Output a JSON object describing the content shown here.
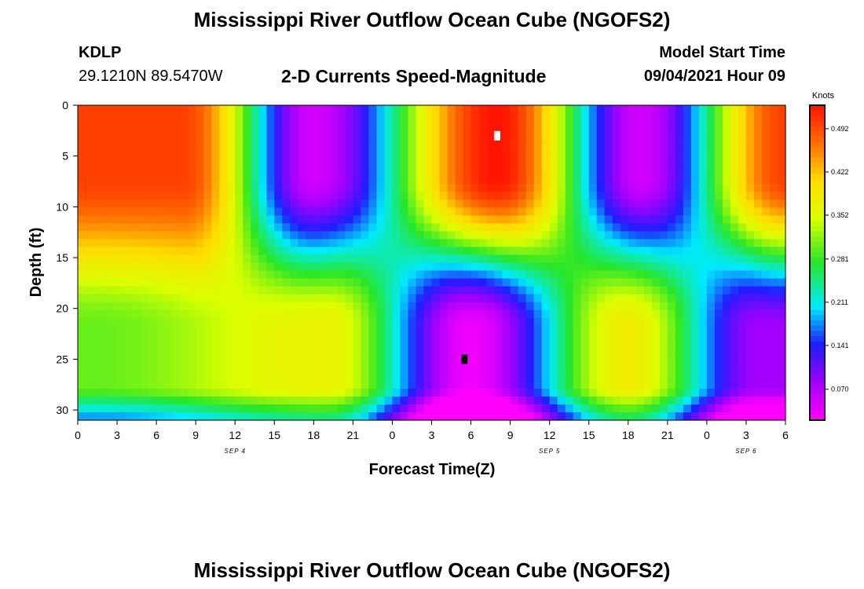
{
  "page": {
    "title_top": "Mississippi River Outflow Ocean Cube (NGOFS2)",
    "title_bottom": "Mississippi River Outflow Ocean Cube (NGOFS2)",
    "station_id": "KDLP",
    "station_coords": "29.1210N  89.5470W",
    "subtitle": "2-D Currents Speed-Magnitude",
    "model_start_label": "Model Start Time",
    "model_start_value": "09/04/2021 Hour 09"
  },
  "chart_data": {
    "type": "heatmap",
    "title": "2-D Currents Speed-Magnitude",
    "xlabel": "Forecast Time(Z)",
    "ylabel": "Depth (ft)",
    "x_range_hours": [
      0,
      54
    ],
    "x_tick_labels": [
      "0",
      "3",
      "6",
      "9",
      "12",
      "15",
      "18",
      "21",
      "0",
      "3",
      "6",
      "9",
      "12",
      "15",
      "18",
      "21",
      "0",
      "3",
      "6"
    ],
    "date_labels": [
      {
        "label": "SEP 4",
        "hour": 12
      },
      {
        "label": "SEP 5",
        "hour": 36
      },
      {
        "label": "SEP 6",
        "hour": 51
      }
    ],
    "y_range_ft": [
      0,
      31
    ],
    "y_ticks": [
      0,
      5,
      10,
      15,
      20,
      25,
      30
    ],
    "colorbar": {
      "unit": "Knots",
      "ticks": [
        "0.492",
        "0.422",
        "0.352",
        "0.281",
        "0.211",
        "0.141",
        "0.070"
      ],
      "min": 0.02,
      "max": 0.53
    },
    "surface_peaks_knots": [
      {
        "hour": 8,
        "value": 0.5
      },
      {
        "hour": 18,
        "value": 0.05
      },
      {
        "hour": 32,
        "value": 0.53
      },
      {
        "hour": 43,
        "value": 0.05
      },
      {
        "hour": 54,
        "value": 0.5
      }
    ],
    "bottom_peaks_knots": [
      {
        "hour": 1,
        "depth_ft": 26,
        "value": 0.3
      },
      {
        "hour": 19,
        "depth_ft": 16,
        "value": 0.37
      },
      {
        "hour": 30,
        "depth_ft": 25,
        "value": 0.03
      },
      {
        "hour": 42,
        "depth_ft": 18,
        "value": 0.38
      },
      {
        "hour": 52,
        "depth_ft": 22,
        "value": 0.08
      }
    ],
    "markers": [
      {
        "hour": 32,
        "depth_ft": 3,
        "color": "#ffffff",
        "meaning": "max"
      },
      {
        "hour": 29.5,
        "depth_ft": 25,
        "color": "#000000",
        "meaning": "min"
      }
    ]
  }
}
